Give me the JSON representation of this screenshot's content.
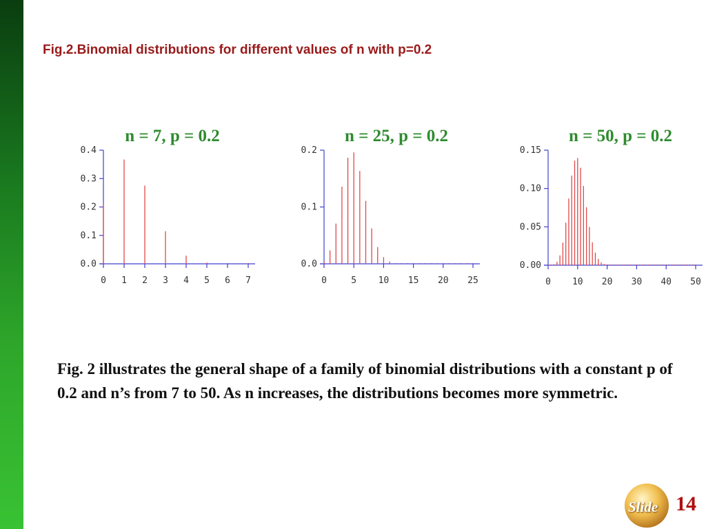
{
  "caption": "Fig.2.Binomial distributions for different values of n with p=0.2",
  "body_text": "Fig. 2 illustrates the general shape of a family of binomial distributions with a constant p of 0.2 and n’s from 7 to 50. As n increases, the distributions  becomes more symmetric.",
  "slide_label": "Slide",
  "slide_number": "14",
  "colors": {
    "sidebar": "#1a7a1f",
    "caption": "#991a1a",
    "chart_title": "#2e8b2e",
    "bars": "#e04848",
    "axes": "#4040d0",
    "slide_number": "#b01010"
  },
  "chart_data": [
    {
      "type": "bar",
      "title": "n = 7,   p = 0.2",
      "xlabel": "",
      "ylabel": "",
      "xlim": [
        0,
        7
      ],
      "ylim": [
        0,
        0.4
      ],
      "xticks": [
        "0",
        "1",
        "2",
        "3",
        "4",
        "5",
        "6",
        "7"
      ],
      "yticks": [
        "0.0",
        "0.1",
        "0.2",
        "0.3",
        "0.4"
      ],
      "x": [
        0,
        1,
        2,
        3,
        4,
        5,
        6,
        7
      ],
      "values": [
        0.2097,
        0.367,
        0.2753,
        0.1147,
        0.0287,
        0.0043,
        0.0004,
        0.0
      ]
    },
    {
      "type": "bar",
      "title": "n = 25,  p = 0.2",
      "xlabel": "",
      "ylabel": "",
      "xlim": [
        0,
        25
      ],
      "ylim": [
        0,
        0.2
      ],
      "xticks": [
        "0",
        "5",
        "10",
        "15",
        "20",
        "25"
      ],
      "yticks": [
        "0.0",
        "0.1",
        "0.2"
      ],
      "x": [
        0,
        1,
        2,
        3,
        4,
        5,
        6,
        7,
        8,
        9,
        10,
        11,
        12,
        13,
        14,
        15,
        16,
        17,
        18,
        19,
        20,
        21,
        22,
        23,
        24,
        25
      ],
      "values": [
        0.0038,
        0.0236,
        0.0708,
        0.1358,
        0.1867,
        0.196,
        0.1633,
        0.1108,
        0.0623,
        0.0294,
        0.0118,
        0.004,
        0.0012,
        0.0003,
        0.0001,
        0,
        0,
        0,
        0,
        0,
        0,
        0,
        0,
        0,
        0,
        0
      ]
    },
    {
      "type": "bar",
      "title": "n = 50,  p = 0.2",
      "xlabel": "",
      "ylabel": "",
      "xlim": [
        0,
        50
      ],
      "ylim": [
        0,
        0.15
      ],
      "xticks": [
        "0",
        "10",
        "20",
        "30",
        "40",
        "50"
      ],
      "yticks": [
        "0.00",
        "0.05",
        "0.10",
        "0.15"
      ],
      "x": [
        0,
        1,
        2,
        3,
        4,
        5,
        6,
        7,
        8,
        9,
        10,
        11,
        12,
        13,
        14,
        15,
        16,
        17,
        18,
        19,
        20,
        21,
        22,
        23,
        24,
        25,
        26,
        27,
        28,
        29,
        30,
        31,
        32,
        33,
        34,
        35,
        36,
        37,
        38,
        39,
        40,
        41,
        42,
        43,
        44,
        45,
        46,
        47,
        48,
        49,
        50
      ],
      "values": [
        0,
        0.0002,
        0.0011,
        0.0044,
        0.0128,
        0.0295,
        0.0554,
        0.087,
        0.1169,
        0.1364,
        0.1398,
        0.1271,
        0.1033,
        0.0755,
        0.0499,
        0.0299,
        0.0164,
        0.0082,
        0.0037,
        0.0016,
        0.0006,
        0.0002,
        0.0001,
        0,
        0,
        0,
        0,
        0,
        0,
        0,
        0,
        0,
        0,
        0,
        0,
        0,
        0,
        0,
        0,
        0,
        0,
        0,
        0,
        0,
        0,
        0,
        0,
        0,
        0,
        0,
        0
      ]
    }
  ]
}
